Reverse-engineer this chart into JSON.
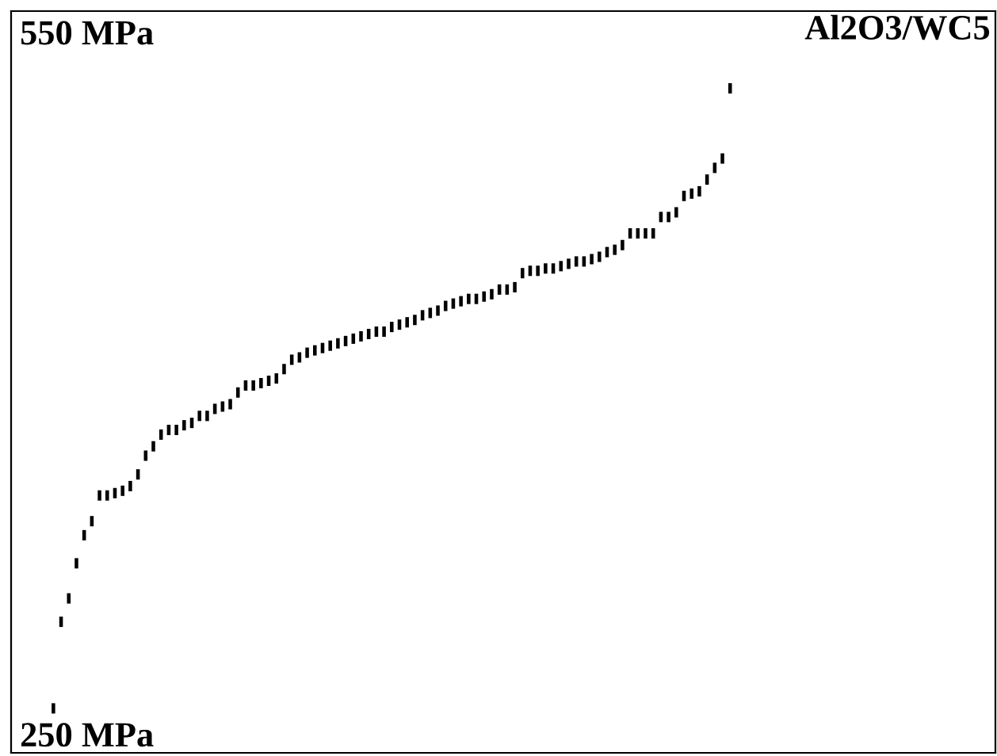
{
  "chart_data": {
    "type": "scatter",
    "title": "Al2O3/WC5",
    "categories": [
      null,
      null,
      null,
      null,
      null,
      null,
      null,
      null,
      null,
      null,
      null,
      null,
      null,
      null,
      null,
      null,
      null,
      null,
      null,
      null,
      null,
      null,
      null,
      null,
      null,
      null,
      null,
      null,
      null,
      null,
      null,
      null,
      null,
      null,
      null,
      null,
      null,
      null,
      null,
      null,
      null,
      null,
      null,
      null,
      null,
      null,
      null,
      null,
      null,
      null,
      null,
      null,
      null,
      null,
      null,
      null,
      null,
      null,
      null,
      null,
      null,
      null,
      null,
      null,
      null,
      null,
      null,
      null,
      null,
      null,
      null,
      null,
      null,
      null,
      null,
      null,
      null,
      null,
      null,
      null,
      null,
      null,
      null,
      null,
      null,
      null,
      null,
      null,
      null,
      null,
      null,
      null,
      null,
      null,
      null,
      null,
      null,
      null,
      null,
      null,
      null,
      null,
      null,
      null,
      null,
      null,
      null,
      null,
      null,
      null,
      null,
      null,
      null,
      null,
      null,
      null,
      null,
      null,
      null,
      null,
      null,
      null,
      null,
      null,
      null,
      null,
      null,
      null
    ],
    "series": [
      {
        "color": "#000000",
        "values": [
          null,
          null,
          null,
          null,
          null,
          261,
          298,
          308,
          323,
          335,
          341,
          352,
          352,
          353,
          354,
          356,
          361,
          369,
          373,
          378,
          380,
          380,
          382,
          383,
          386,
          386,
          389,
          390,
          391,
          396,
          399,
          399,
          400,
          401,
          402,
          406,
          410,
          411,
          413,
          414,
          415,
          416,
          417,
          418,
          419,
          420,
          421,
          422,
          422,
          424,
          425,
          426,
          427,
          429,
          430,
          431,
          433,
          434,
          435,
          436,
          436,
          437,
          438,
          440,
          440,
          441,
          447,
          448,
          448,
          449,
          449,
          450,
          451,
          452,
          452,
          453,
          454,
          456,
          457,
          459,
          464,
          464,
          464,
          464,
          471,
          471,
          473,
          480,
          481,
          482,
          487,
          492,
          496,
          526,
          null,
          null,
          null,
          null,
          null,
          null,
          null,
          null,
          null,
          null,
          null,
          null,
          null,
          null,
          null,
          null,
          null,
          null,
          null,
          null,
          null,
          null,
          null,
          null,
          null,
          null,
          null,
          null,
          null,
          null,
          null,
          null,
          null,
          null
        ]
      }
    ],
    "ylim": [
      242,
      559
    ],
    "yticks": [
      {
        "value": 250,
        "label": "250 MPa"
      },
      {
        "value": 550,
        "label": "550 MPa"
      }
    ],
    "tick_labels": "y",
    "legend": false
  }
}
